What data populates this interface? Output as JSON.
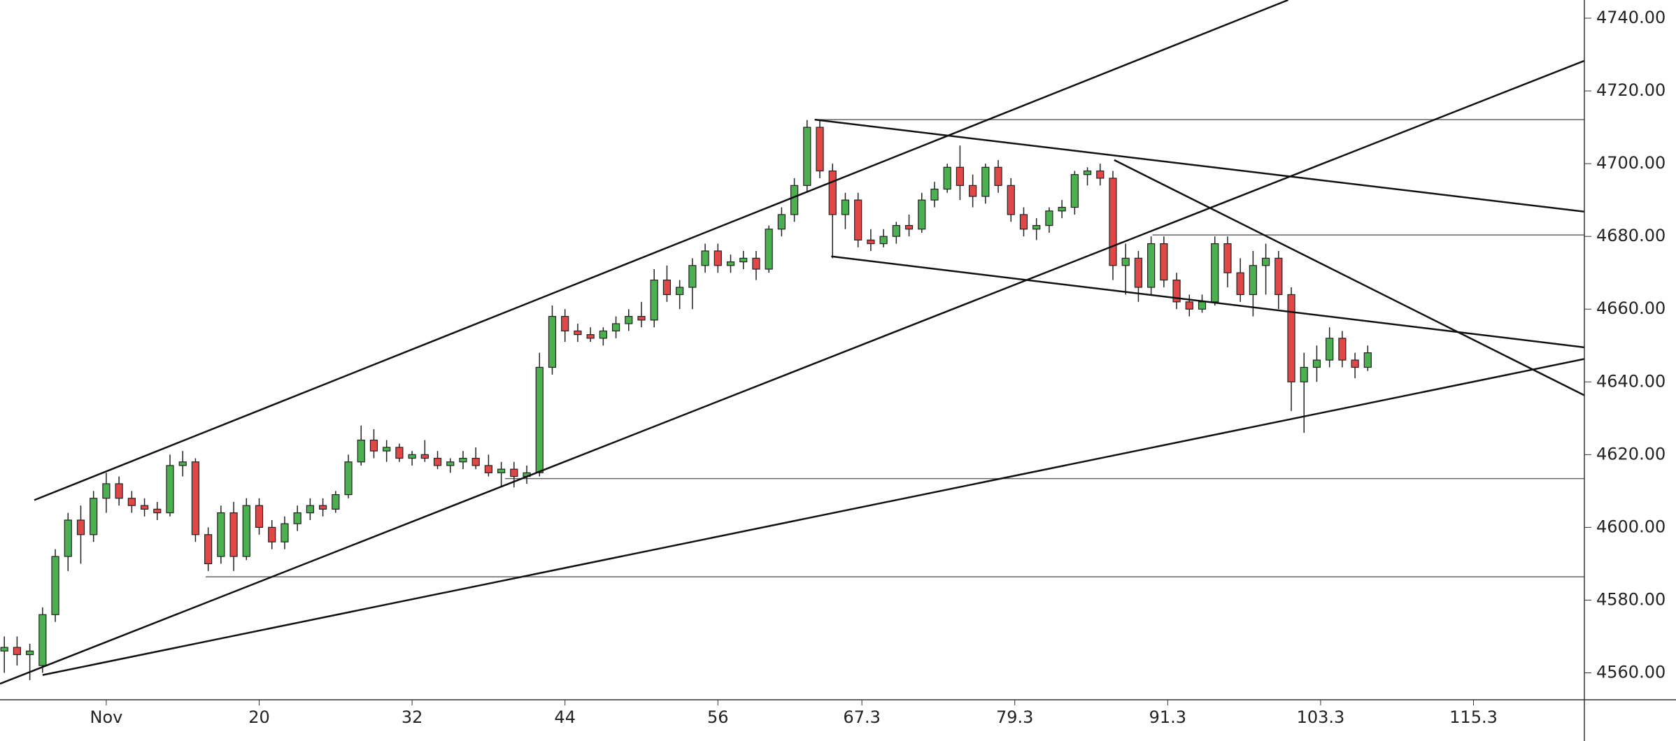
{
  "chart_data": {
    "type": "candlestick",
    "open": [
      4566,
      4567,
      4565,
      4562,
      4576,
      4592,
      4602,
      4598,
      4608,
      4612,
      4608,
      4606,
      4605,
      4604,
      4617,
      4618,
      4598,
      4592,
      4604,
      4592,
      4606,
      4600,
      4596,
      4601,
      4604,
      4606,
      4605,
      4609,
      4618,
      4624,
      4621,
      4622,
      4619,
      4620,
      4619,
      4617,
      4618,
      4619,
      4617,
      4615,
      4616,
      4614,
      4615,
      4644,
      4658,
      4654,
      4653,
      4652,
      4654,
      4656,
      4658,
      4657,
      4668,
      4664,
      4666,
      4672,
      4676,
      4672,
      4673,
      4674,
      4671,
      4682,
      4686,
      4694,
      4710,
      4698,
      4686,
      4690,
      4679,
      4678,
      4680,
      4683,
      4682,
      4690,
      4693,
      4699,
      4694,
      4691,
      4699,
      4694,
      4686,
      4682,
      4683,
      4687,
      4688,
      4697,
      4698,
      4696,
      4672,
      4674,
      4666,
      4678,
      4668,
      4662,
      4660,
      4662,
      4678,
      4670,
      4664,
      4672,
      4674,
      4664,
      4640,
      4644,
      4646,
      4652,
      4646,
      4644
    ],
    "high": [
      4570,
      4570,
      4568,
      4578,
      4594,
      4604,
      4606,
      4610,
      4615,
      4614,
      4610,
      4608,
      4607,
      4620,
      4621,
      4619,
      4600,
      4606,
      4607,
      4608,
      4608,
      4602,
      4603,
      4606,
      4608,
      4608,
      4610,
      4620,
      4628,
      4627,
      4624,
      4623,
      4621,
      4624,
      4621,
      4619,
      4621,
      4622,
      4620,
      4618,
      4618,
      4617,
      4648,
      4661,
      4660,
      4656,
      4655,
      4655,
      4658,
      4660,
      4662,
      4671,
      4672,
      4668,
      4674,
      4678,
      4678,
      4675,
      4676,
      4676,
      4683,
      4688,
      4696,
      4712,
      4712,
      4700,
      4692,
      4692,
      4682,
      4682,
      4684,
      4686,
      4692,
      4695,
      4700,
      4705,
      4697,
      4700,
      4701,
      4696,
      4688,
      4685,
      4688,
      4690,
      4698,
      4699,
      4700,
      4698,
      4678,
      4676,
      4680,
      4680,
      4670,
      4664,
      4664,
      4680,
      4680,
      4674,
      4676,
      4678,
      4676,
      4666,
      4648,
      4650,
      4655,
      4654,
      4648,
      4650
    ],
    "low": [
      4560,
      4562,
      4558,
      4560,
      4574,
      4588,
      4590,
      4596,
      4604,
      4606,
      4604,
      4603,
      4602,
      4603,
      4614,
      4596,
      4588,
      4590,
      4588,
      4591,
      4598,
      4594,
      4594,
      4599,
      4602,
      4603,
      4604,
      4608,
      4617,
      4619,
      4618,
      4618,
      4617,
      4618,
      4616,
      4615,
      4616,
      4616,
      4614,
      4611,
      4611,
      4612,
      4614,
      4642,
      4651,
      4651,
      4651,
      4650,
      4652,
      4654,
      4655,
      4655,
      4662,
      4660,
      4660,
      4670,
      4670,
      4670,
      4671,
      4668,
      4670,
      4680,
      4684,
      4692,
      4696,
      4674,
      4682,
      4677,
      4676,
      4677,
      4678,
      4680,
      4681,
      4688,
      4692,
      4690,
      4688,
      4689,
      4692,
      4684,
      4680,
      4679,
      4681,
      4685,
      4686,
      4694,
      4694,
      4668,
      4664,
      4662,
      4664,
      4666,
      4660,
      4658,
      4659,
      4661,
      4666,
      4662,
      4658,
      4664,
      4660,
      4632,
      4626,
      4640,
      4644,
      4644,
      4641,
      4643
    ],
    "close": [
      4567,
      4565,
      4566,
      4576,
      4592,
      4602,
      4598,
      4608,
      4612,
      4608,
      4606,
      4605,
      4604,
      4617,
      4618,
      4598,
      4590,
      4604,
      4592,
      4606,
      4600,
      4596,
      4601,
      4604,
      4606,
      4605,
      4609,
      4618,
      4624,
      4621,
      4622,
      4619,
      4620,
      4619,
      4617,
      4618,
      4619,
      4617,
      4615,
      4616,
      4614,
      4615,
      4644,
      4658,
      4654,
      4653,
      4652,
      4654,
      4656,
      4658,
      4657,
      4668,
      4664,
      4666,
      4672,
      4676,
      4672,
      4673,
      4674,
      4671,
      4682,
      4686,
      4694,
      4710,
      4698,
      4686,
      4690,
      4679,
      4678,
      4680,
      4683,
      4682,
      4690,
      4693,
      4699,
      4694,
      4691,
      4699,
      4694,
      4686,
      4682,
      4683,
      4687,
      4688,
      4697,
      4698,
      4696,
      4672,
      4674,
      4666,
      4678,
      4668,
      4662,
      4660,
      4662,
      4678,
      4670,
      4664,
      4672,
      4674,
      4664,
      4640,
      4644,
      4646,
      4652,
      4646,
      4644,
      4648
    ],
    "up_color": "#4caf50",
    "down_color": "#e04848",
    "xlim": [
      -0.34,
      124
    ],
    "xticks": [
      {
        "value": 8,
        "label": "Nov"
      },
      20,
      32,
      44,
      56,
      67.3,
      79.3,
      91.3,
      103.3,
      115.3
    ],
    "ylim": [
      4552.6,
      4745
    ],
    "yticks": [
      {
        "value": 4560,
        "label": "4560.00"
      },
      {
        "value": 4580,
        "label": "4580.00"
      },
      {
        "value": 4600,
        "label": "4600.00"
      },
      {
        "value": 4620,
        "label": "4620.00"
      },
      {
        "value": 4640,
        "label": "4640.00"
      },
      {
        "value": 4660,
        "label": "4660.00"
      },
      {
        "value": 4680,
        "label": "4680.00"
      },
      {
        "value": 4700,
        "label": "4700.00"
      },
      {
        "value": 4720,
        "label": "4720.00"
      },
      {
        "value": 4740,
        "label": "4740.00"
      }
    ],
    "trendlines": [
      {
        "x": [
          2.35,
          100.75
        ],
        "y": [
          4607.5,
          4745
        ]
      },
      {
        "x": [
          -0.34,
          124
        ],
        "y": [
          4557,
          4728.3
        ]
      },
      {
        "x": [
          3.0,
          124
        ],
        "y": [
          4559.4,
          4646.3
        ]
      },
      {
        "x": [
          63.6,
          124
        ],
        "y": [
          4712.1,
          4686.8
        ]
      },
      {
        "x": [
          64.9,
          124
        ],
        "y": [
          4674.5,
          4649.5
        ]
      },
      {
        "x": [
          87.1,
          124
        ],
        "y": [
          4701,
          4636.3
        ]
      }
    ],
    "levels": [
      {
        "x": 63.6,
        "y": 4712.1
      },
      {
        "x": 90.1,
        "y": 4680.4
      },
      {
        "x": 39.3,
        "y": 4613.4
      },
      {
        "x": 15.8,
        "y": 4586.4
      }
    ]
  }
}
